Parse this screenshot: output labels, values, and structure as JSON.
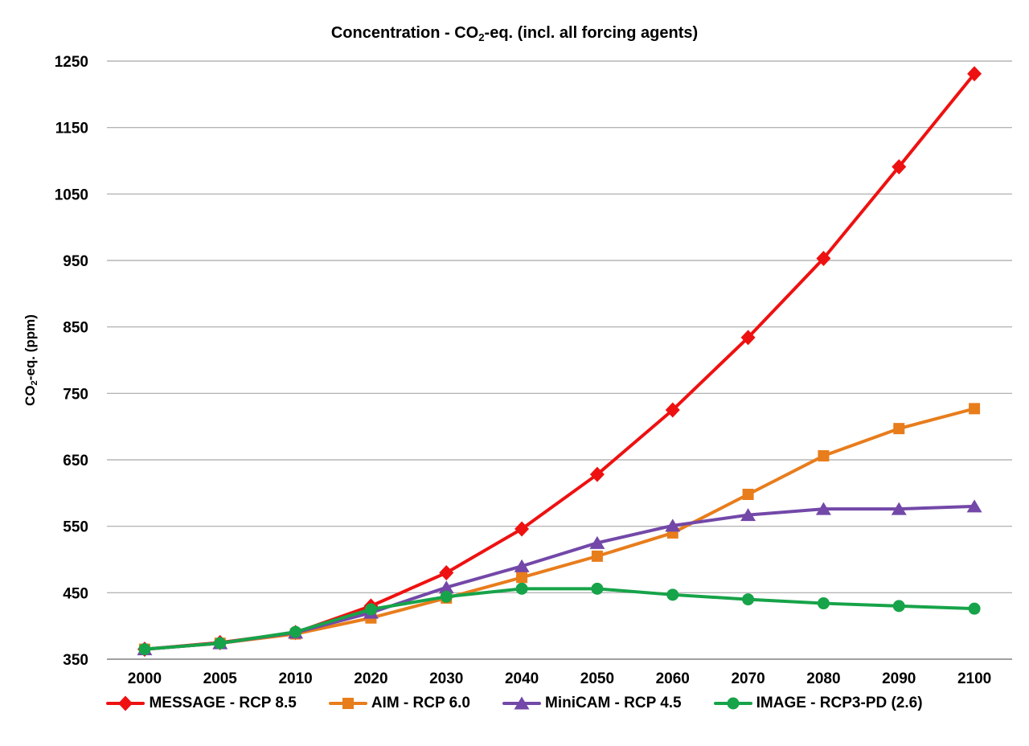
{
  "header": {
    "title_pre": "Concentration - CO",
    "title_sub": "2",
    "title_post": "-eq. (incl. all forcing agents)"
  },
  "yaxis_title": {
    "pre": "CO",
    "sub": "2",
    "post": "-eq. (ppm)"
  },
  "colors": {
    "background": "#FFFFFF",
    "gridline": "#A8A8A8",
    "axis_line": "#808080",
    "text": "#000000"
  },
  "chart_data": {
    "type": "line",
    "title": "Concentration - CO2-eq. (incl. all forcing agents)",
    "xlabel": "",
    "ylabel": "CO2-eq. (ppm)",
    "x_axis_type": "categorical",
    "categories": [
      "2000",
      "2005",
      "2010",
      "2020",
      "2030",
      "2040",
      "2050",
      "2060",
      "2070",
      "2080",
      "2090",
      "2100"
    ],
    "yticks": [
      350,
      450,
      550,
      650,
      750,
      850,
      950,
      1050,
      1150,
      1250
    ],
    "ylim": [
      350,
      1250
    ],
    "grid": true,
    "legend_position": "bottom",
    "series": [
      {
        "name": "MESSAGE - RCP 8.5",
        "color": "#EE1111",
        "marker": "diamond",
        "values": [
          365,
          375,
          390,
          430,
          480,
          546,
          628,
          725,
          834,
          953,
          1091,
          1231
        ]
      },
      {
        "name": "AIM - RCP 6.0",
        "color": "#E87D1C",
        "marker": "square",
        "values": [
          365,
          374,
          388,
          412,
          442,
          473,
          505,
          540,
          598,
          656,
          697,
          727
        ]
      },
      {
        "name": "MiniCAM - RCP 4.5",
        "color": "#7348A8",
        "marker": "triangle",
        "values": [
          365,
          374,
          390,
          420,
          458,
          490,
          525,
          551,
          567,
          576,
          576,
          580
        ]
      },
      {
        "name": "IMAGE - RCP3-PD (2.6)",
        "color": "#17A349",
        "marker": "circle",
        "values": [
          365,
          374,
          391,
          425,
          444,
          456,
          456,
          447,
          440,
          434,
          430,
          426
        ]
      }
    ]
  }
}
